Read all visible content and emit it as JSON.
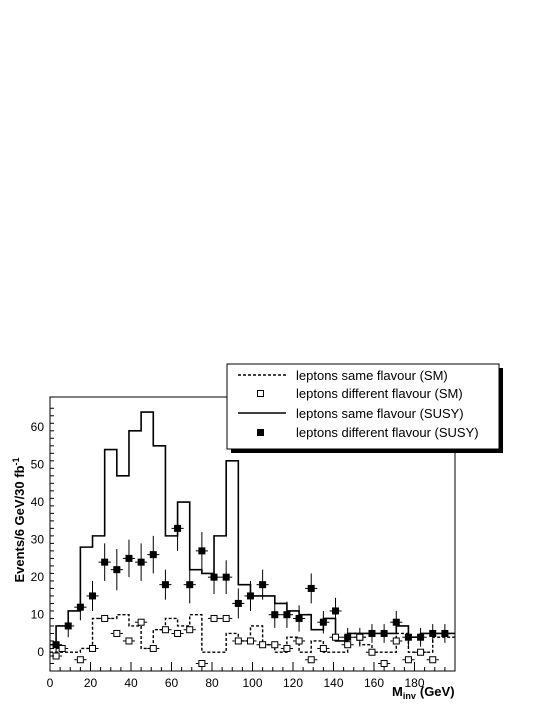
{
  "chart_data": {
    "type": "line",
    "xlabel": "M",
    "xlabel_sub": "inv",
    "xlabel_unit": "(GeV)",
    "ylabel": "Events/6 GeV/30 fb",
    "ylabel_sup": "-1",
    "xlim": [
      0,
      200
    ],
    "ylim": [
      -5,
      68
    ],
    "bin_width": 6,
    "x_ticks": [
      0,
      20,
      40,
      60,
      80,
      100,
      120,
      140,
      160,
      180
    ],
    "y_ticks": [
      0,
      10,
      20,
      30,
      40,
      50,
      60
    ],
    "x_tick_labels": [
      "0",
      "20",
      "40",
      "60",
      "80",
      "100",
      "120",
      "140",
      "160",
      "180"
    ],
    "y_tick_labels": [
      "0",
      "10",
      "20",
      "30",
      "40",
      "50",
      "60"
    ],
    "grid": false,
    "legend_position": "top-right",
    "legend": [
      "leptons same flavour (SM)",
      "leptons different flavour (SM)",
      "leptons same flavour (SUSY)",
      "leptons different flavour (SUSY)"
    ],
    "bin_edges": [
      0,
      3,
      9,
      15,
      21,
      27,
      33,
      39,
      45,
      51,
      57,
      63,
      69,
      75,
      81,
      87,
      93,
      99,
      105,
      111,
      117,
      123,
      129,
      135,
      141,
      147,
      153,
      159,
      165,
      171,
      177,
      183,
      189,
      195,
      200
    ],
    "sm_same_flavour": [
      0,
      0,
      0,
      1,
      9,
      9,
      10,
      7,
      1,
      6,
      9,
      7,
      10,
      0,
      0,
      5,
      3,
      7,
      2,
      0,
      4,
      0,
      3,
      0,
      0,
      5,
      2,
      0,
      0,
      5,
      0,
      0,
      4,
      4
    ],
    "susy_same_flavour": [
      2,
      7,
      11,
      28,
      31,
      54,
      47,
      59,
      64,
      55,
      31,
      40,
      22,
      21,
      31,
      51,
      18,
      15,
      15,
      13,
      11,
      10,
      6,
      9,
      3,
      5,
      5,
      5,
      5,
      7,
      4,
      5,
      5,
      5
    ],
    "sm_different_flavour": {
      "x": [
        3,
        6,
        15,
        21,
        27,
        33,
        39,
        45,
        51,
        57,
        63,
        69,
        75,
        81,
        87,
        93,
        99,
        105,
        111,
        117,
        123,
        129,
        135,
        141,
        147,
        153,
        159,
        165,
        171,
        177,
        183,
        189
      ],
      "y": [
        -1,
        1,
        -2,
        1,
        9,
        5,
        3,
        8,
        1,
        6,
        5,
        6,
        -3,
        9,
        9,
        3,
        3,
        2,
        2,
        1,
        3,
        -2,
        1,
        4,
        2,
        4,
        0,
        -3,
        3,
        -2,
        0,
        -2
      ]
    },
    "susy_different_flavour": {
      "x": [
        3,
        9,
        15,
        21,
        27,
        33,
        39,
        45,
        51,
        57,
        63,
        69,
        75,
        81,
        87,
        93,
        99,
        105,
        111,
        117,
        123,
        129,
        135,
        141,
        147,
        153,
        159,
        165,
        171,
        177,
        183,
        189,
        195
      ],
      "y": [
        2,
        7,
        12,
        15,
        24,
        22,
        25,
        24,
        26,
        18,
        33,
        18,
        27,
        20,
        20,
        13,
        15,
        18,
        10,
        10,
        9,
        17,
        8,
        11,
        4,
        4,
        5,
        5,
        8,
        4,
        4,
        5,
        5
      ],
      "yerr": [
        2,
        3,
        3.5,
        4,
        5,
        5.5,
        5,
        5,
        5,
        4,
        6,
        5,
        5,
        4.5,
        4.5,
        4,
        4,
        4,
        3.5,
        3.5,
        3.5,
        4,
        3,
        3.5,
        2.5,
        2.5,
        2.5,
        2.5,
        3,
        2.5,
        2.5,
        2.5,
        2.5
      ]
    }
  }
}
